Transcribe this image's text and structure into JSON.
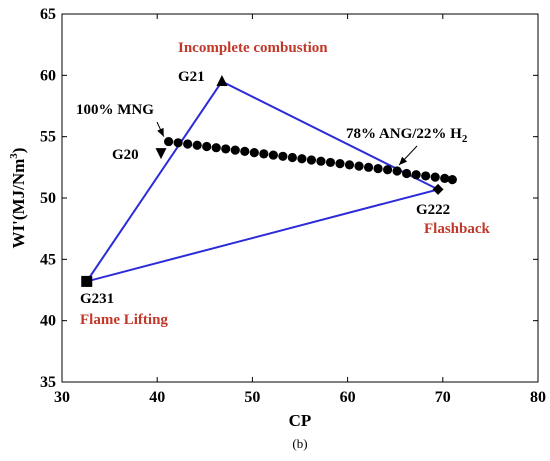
{
  "chart_data": {
    "type": "scatter",
    "xlabel": "CP",
    "ylabel": "WI'(MJ/Nm",
    "ylabel_sup": "3",
    "ylabel_close": ")",
    "xlim": [
      30,
      80
    ],
    "ylim": [
      35,
      65
    ],
    "xticks": [
      30,
      40,
      50,
      60,
      70,
      80
    ],
    "yticks": [
      35,
      40,
      45,
      50,
      55,
      60,
      65
    ],
    "grid": false,
    "triangle": {
      "vertices": [
        {
          "label": "G21",
          "x": 46.8,
          "y": 59.5,
          "marker": "triangle-up"
        },
        {
          "label": "G222",
          "x": 69.5,
          "y": 50.7,
          "marker": "diamond"
        },
        {
          "label": "G231",
          "x": 32.6,
          "y": 43.2,
          "marker": "square"
        }
      ],
      "color": "#2b2bd9"
    },
    "extra_points": [
      {
        "label": "G20",
        "x": 40.4,
        "y": 53.7,
        "marker": "triangle-down"
      }
    ],
    "dots": {
      "x": [
        41.2,
        42.2,
        43.2,
        44.2,
        45.2,
        46.2,
        47.2,
        48.2,
        49.2,
        50.2,
        51.2,
        52.2,
        53.2,
        54.2,
        55.2,
        56.2,
        57.2,
        58.2,
        59.2,
        60.2,
        61.2,
        62.2,
        63.2,
        64.2,
        65.2,
        66.2,
        67.2,
        68.2,
        69.2,
        70.2,
        71.0
      ],
      "y": [
        54.6,
        54.5,
        54.4,
        54.3,
        54.2,
        54.1,
        54.0,
        53.9,
        53.8,
        53.7,
        53.6,
        53.5,
        53.4,
        53.3,
        53.2,
        53.1,
        53.0,
        52.9,
        52.8,
        52.7,
        52.6,
        52.5,
        52.4,
        52.3,
        52.2,
        52.0,
        51.9,
        51.8,
        51.7,
        51.6,
        51.5
      ]
    },
    "annotations": {
      "mng": {
        "text": "100% MNG",
        "arrow_to": [
          41.0,
          54.6
        ]
      },
      "ang": {
        "text": "78% ANG/22% H",
        "sub": "2",
        "arrow_to": [
          65.2,
          52.2
        ]
      }
    },
    "regions": {
      "incomplete": "Incomplete combustion",
      "flashback": "Flashback",
      "lifting": "Flame Lifting"
    },
    "caption": "(b)",
    "colors": {
      "triangle": "#2b2bd9",
      "region_text": "#c0392b",
      "marker": "#000000"
    }
  }
}
